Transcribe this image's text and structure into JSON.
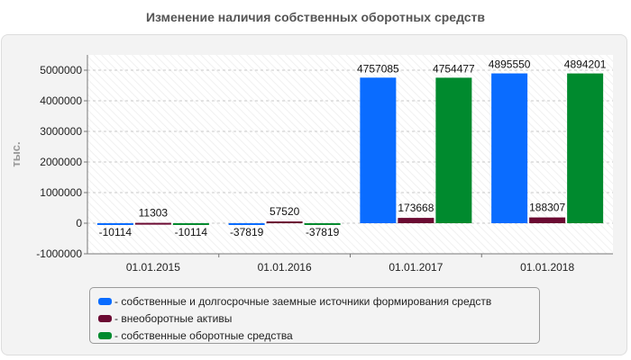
{
  "chart_data": {
    "type": "bar",
    "title": "Изменение наличия собственных оборотных средств",
    "ylabel": "тыс.",
    "xlabel": "",
    "categories": [
      "01.01.2015",
      "01.01.2016",
      "01.01.2017",
      "01.01.2018"
    ],
    "ylim": [
      -1000000,
      5500000
    ],
    "yticks": [
      -1000000,
      0,
      1000000,
      2000000,
      3000000,
      4000000,
      5000000
    ],
    "ytick_labels": [
      "-1000000",
      "0",
      "1000000",
      "2000000",
      "3000000",
      "4000000",
      "5000000"
    ],
    "grid": true,
    "legend_position": "bottom",
    "series": [
      {
        "name": "- собственные и долгосрочные заемные источники формирования средств",
        "color": "#0a6cff",
        "values": [
          -10114,
          -37819,
          4757085,
          4895550
        ],
        "labels": [
          "-10114",
          "-37819",
          "4757085",
          "4895550"
        ]
      },
      {
        "name": "- внеоборотные активы",
        "color": "#6b0a32",
        "values": [
          11303,
          57520,
          173668,
          188307
        ],
        "labels": [
          "11303",
          "57520",
          "173668",
          "188307"
        ]
      },
      {
        "name": "- собственные оборотные средства",
        "color": "#008a2e",
        "values": [
          -10114,
          -37819,
          4754477,
          4894201
        ],
        "labels": [
          "-10114",
          "-37819",
          "4754477",
          "4894201"
        ]
      }
    ]
  }
}
